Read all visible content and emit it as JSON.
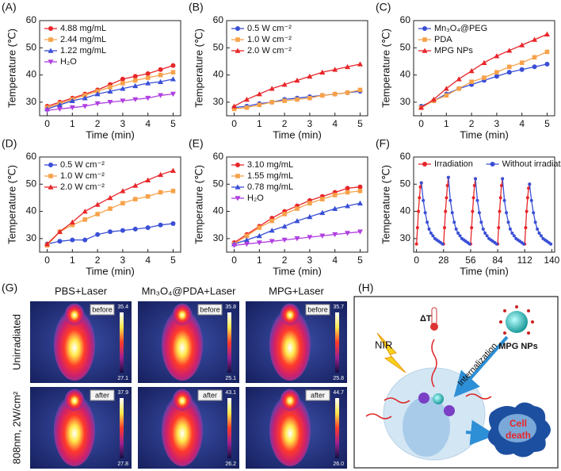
{
  "chart_data": [
    {
      "panel": "(A)",
      "type": "line",
      "x": [
        0,
        0.5,
        1,
        1.5,
        2,
        2.5,
        3,
        3.5,
        4,
        4.5,
        5
      ],
      "xlim": [
        -0.3,
        5.3
      ],
      "xticks": [
        0,
        1,
        2,
        3,
        4,
        5
      ],
      "ylim": [
        25,
        60
      ],
      "yticks": [
        30,
        40,
        50,
        60
      ],
      "x_label": "Time (min)",
      "y_label": "Temperature (℃)",
      "legend": "upper left",
      "series": [
        {
          "name": "4.88 mg/mL",
          "color": "#e8262a",
          "marker": "circle",
          "values": [
            28.5,
            30,
            31.5,
            33,
            34.5,
            36.5,
            38.5,
            39.5,
            40.5,
            42,
            43.5
          ]
        },
        {
          "name": "2.44 mg/mL",
          "color": "#f7a24a",
          "marker": "square",
          "values": [
            28,
            29.5,
            31,
            32.5,
            34,
            35.5,
            37,
            38,
            39,
            40,
            41
          ]
        },
        {
          "name": "1.22 mg/mL",
          "color": "#3a4fd6",
          "marker": "triangle",
          "values": [
            27.5,
            29,
            30.5,
            31.5,
            33,
            34,
            35,
            36,
            37,
            37.5,
            38.5
          ]
        },
        {
          "name": "H₂O",
          "color": "#b03fe0",
          "marker": "down",
          "values": [
            27,
            27.5,
            28,
            28.5,
            29.5,
            30,
            30.5,
            31,
            31.5,
            32.5,
            33
          ]
        }
      ]
    },
    {
      "panel": "(B)",
      "type": "line",
      "x": [
        0,
        0.5,
        1,
        1.5,
        2,
        2.5,
        3,
        3.5,
        4,
        4.5,
        5
      ],
      "xlim": [
        -0.3,
        5.3
      ],
      "xticks": [
        0,
        1,
        2,
        3,
        4,
        5
      ],
      "ylim": [
        25,
        60
      ],
      "yticks": [
        30,
        40,
        50,
        60
      ],
      "x_label": "Time (min)",
      "y_label": "Temperature (℃)",
      "legend": "upper left",
      "series": [
        {
          "name": "0.5 W cm⁻²",
          "color": "#3a4fd6",
          "marker": "circle",
          "values": [
            28,
            28.5,
            29.5,
            30,
            31,
            31.5,
            32,
            32.5,
            33,
            33.5,
            34
          ]
        },
        {
          "name": "1.0 W cm⁻²",
          "color": "#f7a24a",
          "marker": "square",
          "values": [
            27.5,
            28,
            29,
            30,
            30.5,
            31,
            31.5,
            32.5,
            33,
            33.5,
            34.5
          ]
        },
        {
          "name": "2.0 W cm⁻²",
          "color": "#e8262a",
          "marker": "triangle",
          "values": [
            28.5,
            31,
            33,
            35,
            36.5,
            38,
            39.5,
            41,
            42,
            43,
            44
          ]
        }
      ]
    },
    {
      "panel": "(C)",
      "type": "line",
      "x": [
        0,
        0.5,
        1,
        1.5,
        2,
        2.5,
        3,
        3.5,
        4,
        4.5,
        5
      ],
      "xlim": [
        -0.3,
        5.3
      ],
      "xticks": [
        0,
        1,
        2,
        3,
        4,
        5
      ],
      "ylim": [
        25,
        60
      ],
      "yticks": [
        30,
        40,
        50,
        60
      ],
      "x_label": "Time (min)",
      "y_label": "Temperature (℃)",
      "legend": "upper left",
      "series": [
        {
          "name": "Mn₃O₄@PEG",
          "color": "#3a4fd6",
          "marker": "circle",
          "values": [
            28.5,
            30.5,
            33,
            35,
            36.5,
            38,
            39.5,
            41,
            42,
            43,
            44
          ]
        },
        {
          "name": "PDA",
          "color": "#f7a24a",
          "marker": "square",
          "values": [
            28,
            30.5,
            32.5,
            35,
            37.5,
            39,
            41,
            43,
            44.5,
            46.5,
            48.5
          ]
        },
        {
          "name": "MPG NPs",
          "color": "#e8262a",
          "marker": "triangle",
          "values": [
            28,
            31,
            35,
            38.5,
            41.5,
            44.5,
            47,
            49,
            51,
            53,
            55
          ]
        }
      ]
    },
    {
      "panel": "(D)",
      "type": "line",
      "x": [
        0,
        0.5,
        1,
        1.5,
        2,
        2.5,
        3,
        3.5,
        4,
        4.5,
        5
      ],
      "xlim": [
        -0.3,
        5.3
      ],
      "xticks": [
        0,
        1,
        2,
        3,
        4,
        5
      ],
      "ylim": [
        25,
        60
      ],
      "yticks": [
        30,
        40,
        50,
        60
      ],
      "x_label": "Time (min)",
      "y_label": "Temperature (℃)",
      "legend": "upper left",
      "series": [
        {
          "name": "0.5 W cm⁻²",
          "color": "#3a4fd6",
          "marker": "circle",
          "values": [
            28,
            29,
            29.5,
            29.5,
            31.5,
            32.5,
            33,
            33.5,
            34,
            35,
            35.5
          ]
        },
        {
          "name": "1.0 W cm⁻²",
          "color": "#f7a24a",
          "marker": "square",
          "values": [
            27.5,
            32.5,
            35,
            37,
            39,
            41,
            43,
            44.5,
            45.5,
            47,
            47.5
          ]
        },
        {
          "name": "2.0 W cm⁻²",
          "color": "#e8262a",
          "marker": "triangle",
          "values": [
            28,
            32.5,
            36,
            40,
            42.5,
            45,
            47.5,
            49.5,
            51.5,
            53.5,
            55
          ]
        }
      ]
    },
    {
      "panel": "(E)",
      "type": "line",
      "x": [
        0,
        0.5,
        1,
        1.5,
        2,
        2.5,
        3,
        3.5,
        4,
        4.5,
        5
      ],
      "xlim": [
        -0.3,
        5.3
      ],
      "xticks": [
        0,
        1,
        2,
        3,
        4,
        5
      ],
      "ylim": [
        25,
        60
      ],
      "yticks": [
        30,
        40,
        50,
        60
      ],
      "x_label": "Time (min)",
      "y_label": "Temperature (℃)",
      "legend": "upper left",
      "series": [
        {
          "name": "3.10 mg/mL",
          "color": "#e8262a",
          "marker": "circle",
          "values": [
            28.5,
            31.5,
            34.5,
            37.5,
            40,
            42,
            44,
            45.5,
            47,
            48.5,
            49
          ]
        },
        {
          "name": "1.55 mg/mL",
          "color": "#f7a24a",
          "marker": "square",
          "values": [
            28,
            31,
            34,
            36.5,
            39,
            41,
            43,
            44.5,
            46,
            47,
            47.5
          ]
        },
        {
          "name": "0.78 mg/mL",
          "color": "#3a4fd6",
          "marker": "triangle",
          "values": [
            28,
            29.5,
            31,
            33,
            34.5,
            36.5,
            38,
            39.5,
            41,
            42,
            43
          ]
        },
        {
          "name": "H₂O",
          "color": "#b03fe0",
          "marker": "down",
          "values": [
            27.5,
            28,
            28.5,
            29,
            29.5,
            30,
            30.5,
            31,
            31.5,
            32,
            32.5
          ]
        }
      ]
    },
    {
      "panel": "(F)",
      "type": "line",
      "xlim": [
        -3,
        143
      ],
      "xticks": [
        0,
        28,
        56,
        84,
        112,
        140
      ],
      "ylim": [
        25,
        60
      ],
      "yticks": [
        30,
        40,
        50,
        60
      ],
      "x_label": "Time (min)",
      "y_label": "Temperature (℃)",
      "legend": "upper center",
      "series": [
        {
          "name": "Irradiation",
          "color": "#e8262a",
          "marker": "small",
          "x": [
            0,
            1,
            2,
            3,
            4,
            5,
            null,
            28,
            29,
            30,
            31,
            32,
            33,
            null,
            56,
            57,
            58,
            59,
            60,
            61,
            null,
            84,
            85,
            86,
            87,
            88,
            89,
            null,
            112,
            113,
            114,
            115,
            116,
            117
          ],
          "values": [
            28,
            34,
            40,
            45,
            49,
            50.5,
            null,
            28,
            34,
            40,
            45,
            49.5,
            52.5,
            null,
            28,
            34,
            40,
            45,
            49.5,
            52,
            null,
            28,
            34,
            40,
            45,
            49.5,
            52,
            null,
            28,
            34,
            40,
            45,
            48.5,
            50
          ]
        },
        {
          "name": "Without irradiation",
          "color": "#3a4fd6",
          "marker": "small",
          "x": [
            5,
            7,
            9,
            11,
            13,
            15,
            17,
            19,
            21,
            23,
            25,
            27,
            null,
            33,
            35,
            37,
            39,
            41,
            43,
            45,
            47,
            49,
            51,
            53,
            55,
            null,
            61,
            63,
            65,
            67,
            69,
            71,
            73,
            75,
            77,
            79,
            81,
            83,
            null,
            89,
            91,
            93,
            95,
            97,
            99,
            101,
            103,
            105,
            107,
            109,
            111,
            null,
            117,
            119,
            121,
            123,
            125,
            127,
            129,
            131,
            133,
            135,
            137,
            139
          ],
          "values": [
            50.5,
            44,
            39.5,
            36,
            33.5,
            32,
            31,
            30,
            29.5,
            29,
            28.5,
            28,
            null,
            52.5,
            44,
            39.5,
            36,
            33.5,
            32,
            31,
            30,
            29.5,
            29,
            28.5,
            28,
            null,
            52,
            44,
            39.5,
            36,
            33.5,
            32,
            31,
            30,
            29.5,
            29,
            28.5,
            28,
            null,
            52,
            44,
            39.5,
            36,
            33.5,
            32,
            31,
            30,
            29.5,
            29,
            28.5,
            28,
            null,
            50,
            44,
            39.5,
            36,
            33.5,
            32,
            31,
            30,
            29.5,
            29,
            28.5,
            28
          ]
        }
      ]
    }
  ],
  "thermal_imaging": {
    "panel": "(G)",
    "columns": [
      "PBS+Laser",
      "Mn₃O₄@PDA+Laser",
      "MPG+Laser"
    ],
    "rows": [
      "Unirradiated",
      "808nm, 2W/cm²"
    ],
    "images": [
      [
        {
          "tag": "before",
          "max": "35.4",
          "min": "27.1"
        },
        {
          "tag": "before",
          "max": "35.8",
          "min": "25.1"
        },
        {
          "tag": "before",
          "max": "35.7",
          "min": "25.8"
        }
      ],
      [
        {
          "tag": "after",
          "max": "37.9",
          "min": "27.8"
        },
        {
          "tag": "after",
          "max": "43.1",
          "min": "26.2"
        },
        {
          "tag": "after",
          "max": "44.7",
          "min": "26.0"
        }
      ]
    ]
  },
  "diagram": {
    "panel": "(H)",
    "delta_t": "ΔT",
    "nir": "NIR",
    "internalization": "Internalization",
    "nanoparticle": "MPG NPs",
    "cell_death": [
      "Cell",
      "death"
    ]
  }
}
